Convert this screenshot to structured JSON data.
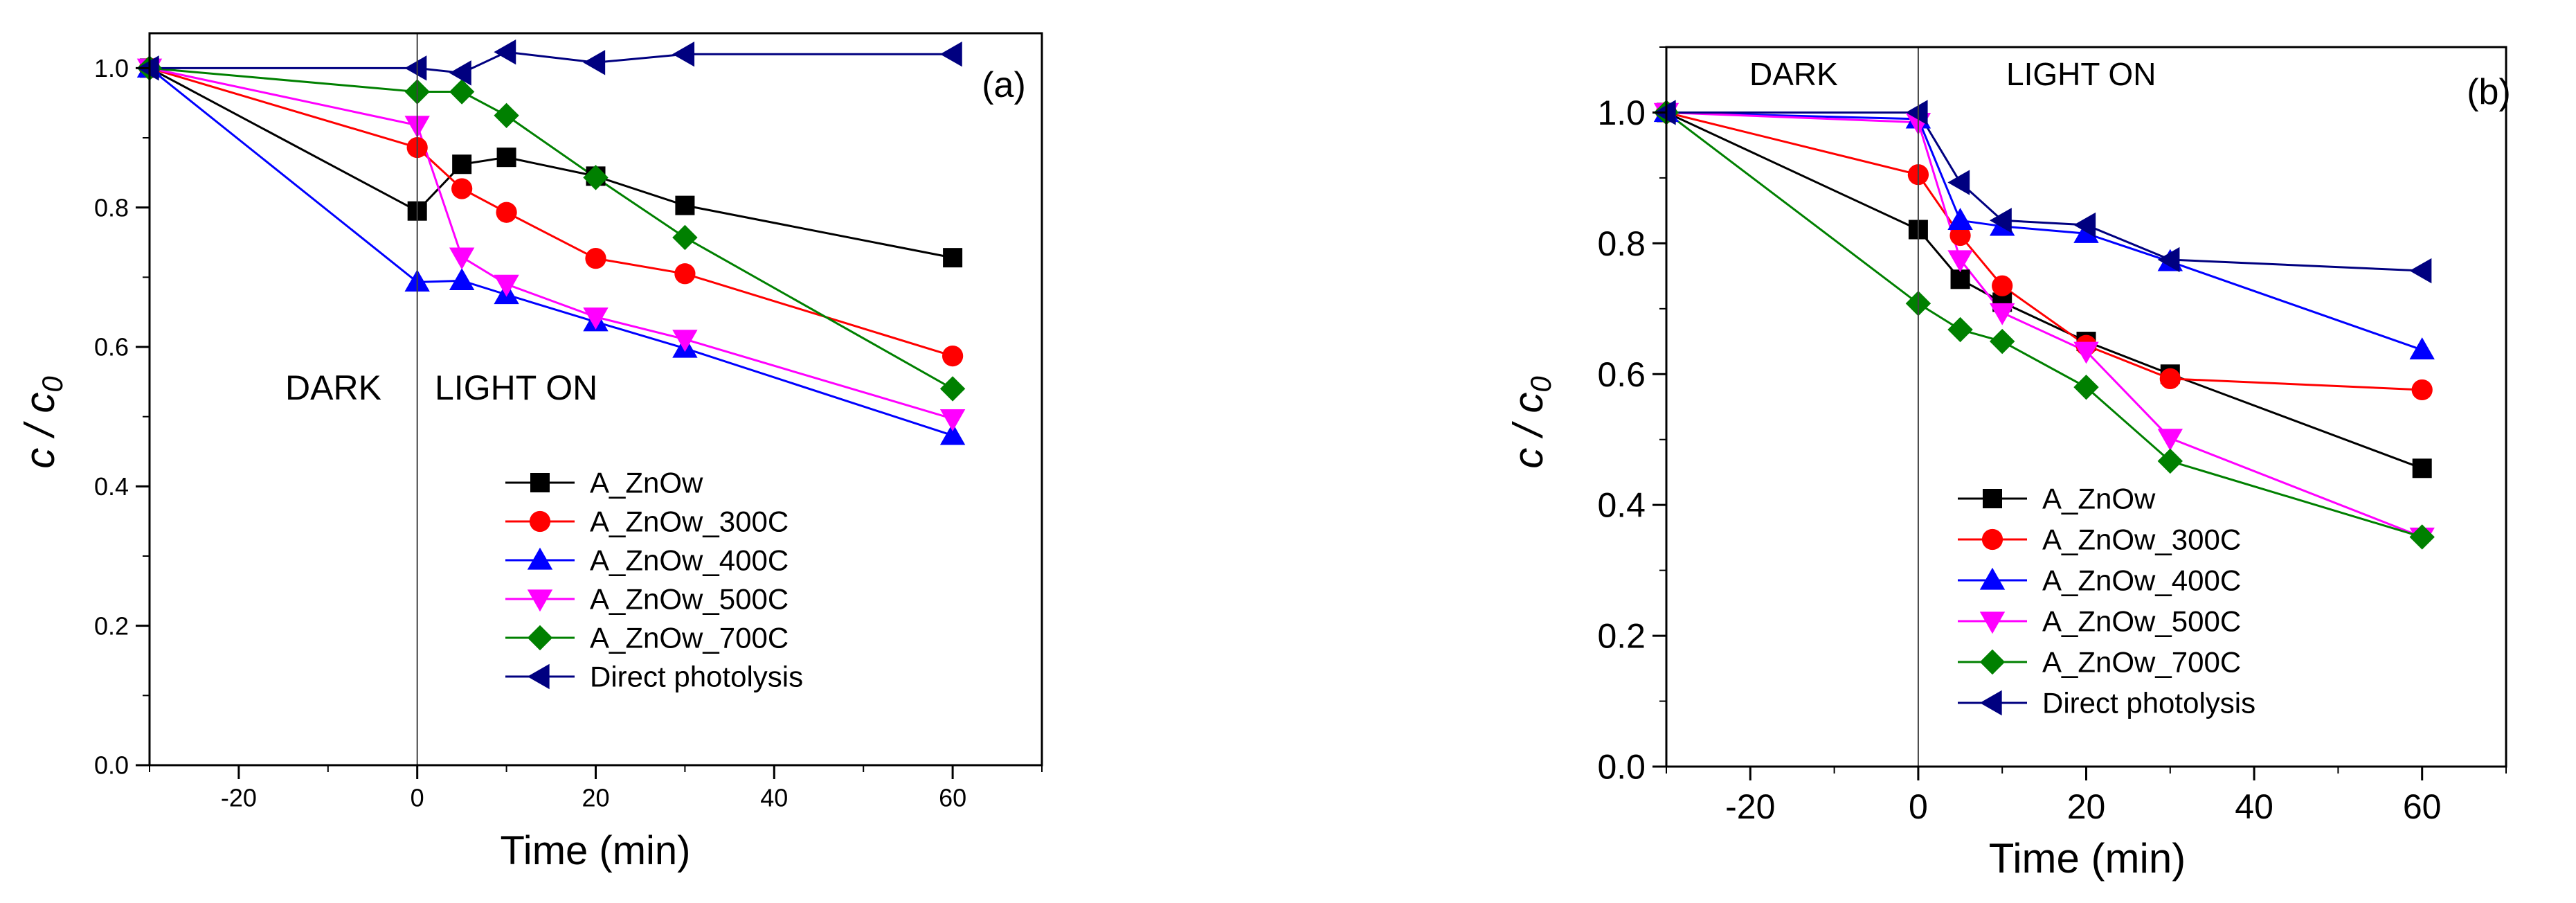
{
  "chart_data": [
    {
      "type": "line",
      "panel_label": "(a)",
      "xlabel": "Time (min)",
      "ylabel": "c / c0",
      "ylabel_main": "c / c",
      "ylabel_sub": "0",
      "xlim": [
        -30,
        70
      ],
      "ylim": [
        0,
        1.05
      ],
      "xticks": [
        -20,
        0,
        20,
        40,
        60
      ],
      "xtick_labels": [
        "-20",
        "0",
        "20",
        "40",
        "60"
      ],
      "yticks": [
        0.0,
        0.2,
        0.4,
        0.6,
        0.8,
        1.0
      ],
      "ytick_labels": [
        "0.0",
        "0.2",
        "0.4",
        "0.6",
        "0.8",
        "1.0"
      ],
      "dark_label": "DARK",
      "light_label": "LIGHT ON",
      "legend_position": "lower-right",
      "series": [
        {
          "name": "A_ZnOw",
          "color": "#000000",
          "marker": "square",
          "x": [
            -30,
            0,
            5,
            10,
            20,
            30,
            60
          ],
          "y": [
            1.0,
            0.795,
            0.862,
            0.872,
            0.845,
            0.803,
            0.728
          ]
        },
        {
          "name": "A_ZnOw_300C",
          "color": "#ff0000",
          "marker": "circle",
          "x": [
            -30,
            0,
            5,
            10,
            20,
            30,
            60
          ],
          "y": [
            1.0,
            0.886,
            0.827,
            0.793,
            0.727,
            0.705,
            0.587
          ]
        },
        {
          "name": "A_ZnOw_400C",
          "color": "#0000ff",
          "marker": "triangle-up",
          "x": [
            -30,
            0,
            5,
            10,
            20,
            30,
            60
          ],
          "y": [
            1.0,
            0.693,
            0.695,
            0.675,
            0.636,
            0.598,
            0.473
          ]
        },
        {
          "name": "A_ZnOw_500C",
          "color": "#ff00ff",
          "marker": "triangle-down",
          "x": [
            -30,
            0,
            5,
            10,
            20,
            30,
            60
          ],
          "y": [
            1.0,
            0.918,
            0.729,
            0.69,
            0.643,
            0.611,
            0.497
          ]
        },
        {
          "name": "A_ZnOw_700C",
          "color": "#008000",
          "marker": "diamond",
          "x": [
            -30,
            0,
            5,
            10,
            20,
            30,
            60
          ],
          "y": [
            1.0,
            0.966,
            0.966,
            0.932,
            0.843,
            0.757,
            0.54
          ]
        },
        {
          "name": "Direct photolysis",
          "color": "#000080",
          "marker": "triangle-left",
          "x": [
            -30,
            0,
            5,
            10,
            20,
            30,
            60
          ],
          "y": [
            1.0,
            1.0,
            0.993,
            1.023,
            1.008,
            1.02,
            1.02
          ]
        }
      ]
    },
    {
      "type": "line",
      "panel_label": "(b)",
      "xlabel": "Time (min)",
      "ylabel": "c / c0",
      "ylabel_main": "c / c",
      "ylabel_sub": "0",
      "xlim": [
        -30,
        70
      ],
      "ylim": [
        0,
        1.1
      ],
      "xticks": [
        -20,
        0,
        20,
        40,
        60
      ],
      "xtick_labels": [
        "-20",
        "0",
        "20",
        "40",
        "60"
      ],
      "yticks": [
        0.0,
        0.2,
        0.4,
        0.6,
        0.8,
        1.0
      ],
      "ytick_labels": [
        "0.0",
        "0.2",
        "0.4",
        "0.6",
        "0.8",
        "1.0"
      ],
      "dark_label": "DARK",
      "light_label": "LIGHT ON",
      "legend_position": "lower-center",
      "series": [
        {
          "name": "A_ZnOw",
          "color": "#000000",
          "marker": "square",
          "x": [
            -30,
            0,
            5,
            10,
            20,
            30,
            60
          ],
          "y": [
            1.0,
            0.821,
            0.745,
            0.71,
            0.65,
            0.6,
            0.456
          ]
        },
        {
          "name": "A_ZnOw_300C",
          "color": "#ff0000",
          "marker": "circle",
          "x": [
            -30,
            0,
            5,
            10,
            20,
            30,
            60
          ],
          "y": [
            1.0,
            0.905,
            0.812,
            0.735,
            0.644,
            0.593,
            0.576
          ]
        },
        {
          "name": "A_ZnOw_400C",
          "color": "#0000ff",
          "marker": "triangle-up",
          "x": [
            -30,
            0,
            5,
            10,
            20,
            30,
            60
          ],
          "y": [
            1.0,
            0.99,
            0.835,
            0.826,
            0.815,
            0.772,
            0.637
          ]
        },
        {
          "name": "A_ZnOw_500C",
          "color": "#ff00ff",
          "marker": "triangle-down",
          "x": [
            -30,
            0,
            5,
            10,
            20,
            30,
            60
          ],
          "y": [
            1.0,
            0.985,
            0.775,
            0.694,
            0.635,
            0.502,
            0.351
          ]
        },
        {
          "name": "A_ZnOw_700C",
          "color": "#008000",
          "marker": "diamond",
          "x": [
            -30,
            0,
            5,
            10,
            20,
            30,
            60
          ],
          "y": [
            1.0,
            0.708,
            0.668,
            0.65,
            0.58,
            0.467,
            0.351
          ]
        },
        {
          "name": "Direct photolysis",
          "color": "#000080",
          "marker": "triangle-left",
          "x": [
            -30,
            0,
            5,
            10,
            20,
            30,
            60
          ],
          "y": [
            1.0,
            1.0,
            0.893,
            0.835,
            0.828,
            0.775,
            0.758
          ]
        }
      ]
    }
  ]
}
